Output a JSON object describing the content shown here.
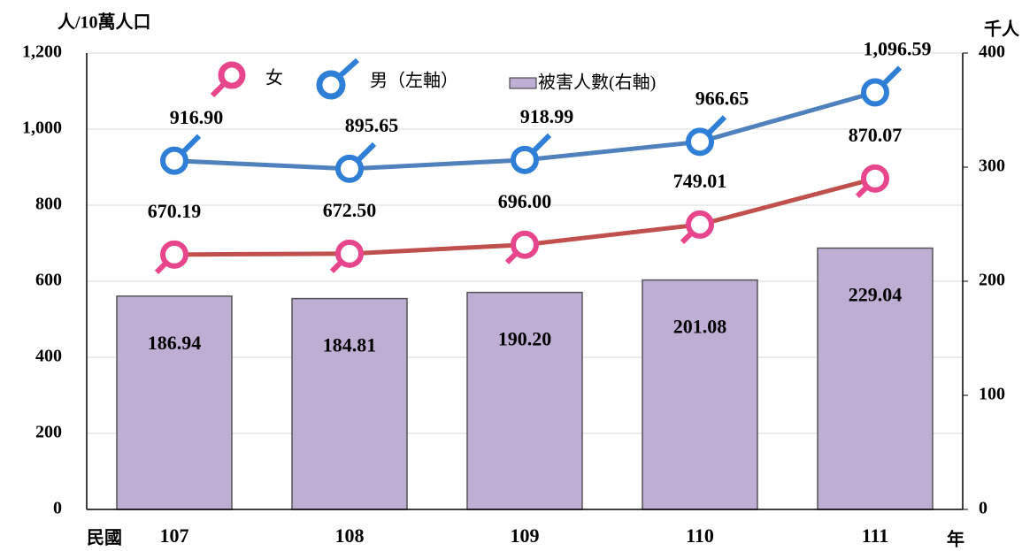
{
  "chart_data": {
    "type": "combo",
    "y_label": "人/10萬人口",
    "y2_label": "千人",
    "x_prefix": "民國",
    "x_suffix": "年",
    "categories": [
      "107",
      "108",
      "109",
      "110",
      "111"
    ],
    "series": [
      {
        "name": "女",
        "type": "line",
        "axis": "y",
        "color": "#c0504d",
        "marker_color": "#e8468c",
        "values": [
          670.19,
          672.5,
          696.0,
          749.01,
          870.07
        ],
        "value_labels": [
          "670.19",
          "672.50",
          "696.00",
          "749.01",
          "870.07"
        ]
      },
      {
        "name": "男（左軸）",
        "type": "line",
        "axis": "y",
        "color": "#4f81bd",
        "marker_color": "#2f7fd6",
        "values": [
          916.9,
          895.65,
          918.99,
          966.65,
          1096.59
        ],
        "value_labels": [
          "916.90",
          "895.65",
          "918.99",
          "966.65",
          "1,096.59"
        ]
      },
      {
        "name": "被害人數(右軸)",
        "type": "bar",
        "axis": "y2",
        "color": "#bfaed4",
        "values": [
          186.94,
          184.81,
          190.2,
          201.08,
          229.04
        ],
        "value_labels": [
          "186.94",
          "184.81",
          "190.20",
          "201.08",
          "229.04"
        ]
      }
    ],
    "ylim": [
      0,
      1200
    ],
    "yticks": [
      0,
      200,
      400,
      600,
      800,
      {
        "value": 1000,
        "label": "1,000"
      },
      {
        "value": 1200,
        "label": "1,200"
      }
    ],
    "y2lim": [
      0,
      400
    ],
    "y2ticks": [
      0,
      100,
      200,
      300,
      400
    ],
    "grid": true
  }
}
